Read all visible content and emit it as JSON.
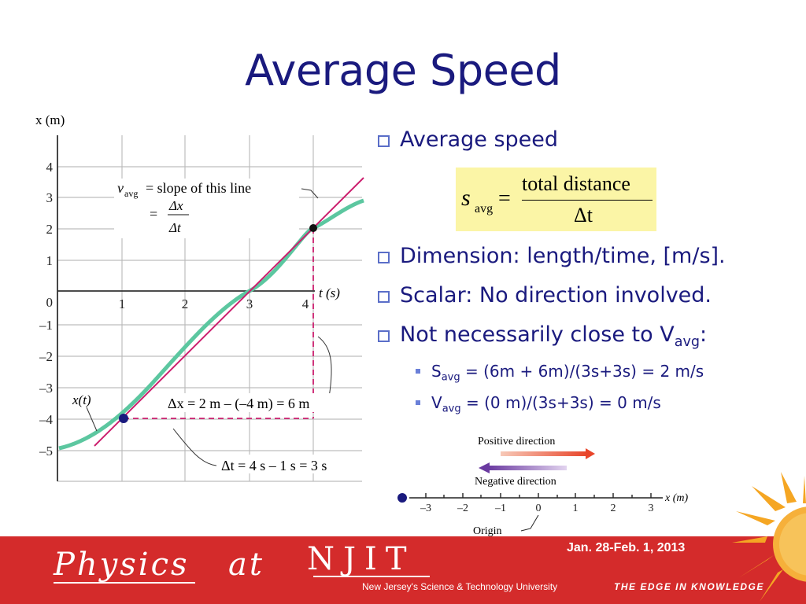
{
  "slide": {
    "title": "Average Speed"
  },
  "graph": {
    "y_axis_label": "x (m)",
    "x_axis_label": "t (s)",
    "y_ticks": [
      "4",
      "3",
      "2",
      "1",
      "0",
      "–1",
      "–2",
      "–3",
      "–4",
      "–5"
    ],
    "x_ticks": [
      "1",
      "2",
      "3",
      "4"
    ],
    "annotation_vavg": "v",
    "annotation_vavg_sub": "avg",
    "annotation_slope": "= slope of this line",
    "annotation_eq1": "=",
    "annotation_num1": "Δx",
    "annotation_den1": "Δt",
    "annotation_eq2": "=",
    "annotation_num2": "Δx",
    "annotation_den2": "Δt",
    "curve_label": "x(t)",
    "delta_x": "Δx = 2 m – (–4 m) = 6 m",
    "delta_t": "Δt = 4 s – 1 s = 3 s",
    "colors": {
      "curve": "#5cc7a0",
      "line": "#cc1f6e",
      "dash": "#cc1f6e"
    }
  },
  "bullets": {
    "b1": "Average speed",
    "b2": "Dimension: length/time, [m/s].",
    "b3": "Scalar: No direction involved.",
    "b4_prefix": "Not necessarily close to V",
    "b4_sub": "avg",
    "b4_suffix": ":",
    "sub1_prefix": "S",
    "sub1_sub": "avg",
    "sub1_rest": " = (6m + 6m)/(3s+3s) = 2 m/s",
    "sub2_prefix": "V",
    "sub2_sub": "avg",
    "sub2_rest": " = (0 m)/(3s+3s) = 0 m/s"
  },
  "formula": {
    "lhs": "s",
    "lhs_sub": "avg",
    "eq": "=",
    "numerator": "total distance",
    "denominator": "Δt"
  },
  "number_line": {
    "positive_label": "Positive direction",
    "negative_label": "Negative direction",
    "axis_label": "x (m)",
    "ticks": [
      "–3",
      "–2",
      "–1",
      "0",
      "1",
      "2",
      "3"
    ],
    "origin_label": "Origin"
  },
  "footer": {
    "physics": "Physics",
    "at": "at",
    "njit": "NJIT",
    "njit_tagline": "New Jersey's Science & Technology University",
    "date": "Jan. 28-Feb. 1, 2013",
    "edge": "THE EDGE IN KNOWLEDGE",
    "colors": {
      "background": "#d42b2b"
    }
  }
}
